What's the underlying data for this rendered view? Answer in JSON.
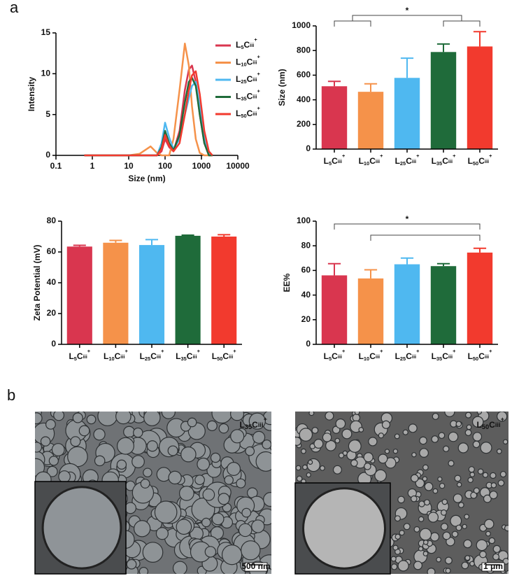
{
  "panels": [
    "a",
    "b"
  ],
  "chart_data": [
    {
      "type": "line",
      "xlabel": "Size (nm)",
      "ylabel": "Intensity",
      "log_x": true,
      "xlim": [
        0.1,
        10000
      ],
      "xticks": [
        0.1,
        1,
        10,
        100,
        1000,
        10000
      ],
      "ylim": [
        0,
        15
      ],
      "yticks": [
        0,
        5,
        10,
        15
      ],
      "legend": "upper right",
      "x": [
        0.6,
        10,
        20,
        40,
        60,
        80,
        100,
        130,
        170,
        250,
        350,
        450,
        550,
        700,
        900,
        1200,
        1600,
        2000
      ],
      "series": [
        {
          "name": [
            "L",
            "5",
            "C",
            "iii",
            "+"
          ],
          "color": "#d9364f",
          "values": [
            0,
            0,
            0,
            0,
            0,
            0.5,
            2.0,
            1.0,
            0.5,
            3,
            8,
            10.5,
            11,
            9,
            5,
            1.5,
            0,
            0
          ]
        },
        {
          "name": [
            "L",
            "10",
            "C",
            "iii",
            "+"
          ],
          "color": "#f5924a",
          "values": [
            0,
            0,
            0.2,
            1.1,
            0.3,
            0,
            0,
            0,
            2,
            8,
            13.7,
            11,
            6,
            2,
            0.3,
            0,
            0,
            0
          ]
        },
        {
          "name": [
            "L",
            "25",
            "C",
            "iii",
            "+"
          ],
          "color": "#4fb8f0",
          "values": [
            0,
            0,
            0,
            0,
            0,
            1.5,
            4,
            2.2,
            0.8,
            2,
            5,
            7,
            8.5,
            9,
            6,
            2,
            0.2,
            0
          ]
        },
        {
          "name": [
            "L",
            "35",
            "C",
            "iii",
            "+"
          ],
          "color": "#1f6b3a",
          "values": [
            0,
            0,
            0,
            0,
            0,
            1,
            3,
            1.5,
            0.6,
            2.5,
            6.5,
            9,
            9.5,
            8.5,
            5,
            1.5,
            0,
            0
          ]
        },
        {
          "name": [
            "L",
            "50",
            "C",
            "iii",
            "+"
          ],
          "color": "#f23a2e",
          "values": [
            0,
            0,
            0,
            0,
            0,
            0.8,
            2.5,
            1.2,
            0.5,
            1.5,
            5,
            8,
            9.8,
            10.3,
            7.5,
            3,
            0.5,
            0
          ]
        }
      ]
    },
    {
      "type": "bar",
      "ylabel": "Size (nm)",
      "categories": [
        [
          "L",
          "5",
          "C",
          "iii",
          "+"
        ],
        [
          "L",
          "10",
          "C",
          "iii",
          "+"
        ],
        [
          "L",
          "25",
          "C",
          "iii",
          "+"
        ],
        [
          "L",
          "35",
          "C",
          "iii",
          "+"
        ],
        [
          "L",
          "50",
          "C",
          "iii",
          "+"
        ]
      ],
      "colors": [
        "#d9364f",
        "#f5924a",
        "#4fb8f0",
        "#1f6b3a",
        "#f23a2e"
      ],
      "values": [
        510,
        465,
        578,
        788,
        833
      ],
      "errors": [
        40,
        65,
        160,
        65,
        120
      ],
      "ylim": [
        0,
        1000
      ],
      "yticks": [
        0,
        200,
        400,
        600,
        800,
        1000
      ],
      "significance": {
        "groups": [
          [
            0,
            1
          ],
          [
            3,
            4
          ]
        ],
        "label": "*"
      }
    },
    {
      "type": "bar",
      "ylabel": "Zeta Potential (mV)",
      "categories": [
        [
          "L",
          "5",
          "C",
          "iii",
          "+"
        ],
        [
          "L",
          "10",
          "C",
          "iii",
          "+"
        ],
        [
          "L",
          "25",
          "C",
          "iii",
          "+"
        ],
        [
          "L",
          "35",
          "C",
          "iii",
          "+"
        ],
        [
          "L",
          "50",
          "C",
          "iii",
          "+"
        ]
      ],
      "colors": [
        "#d9364f",
        "#f5924a",
        "#4fb8f0",
        "#1f6b3a",
        "#f23a2e"
      ],
      "values": [
        63.5,
        66,
        64.5,
        70.5,
        70
      ],
      "errors": [
        0.8,
        1.5,
        3.5,
        0.4,
        1.2
      ],
      "ylim": [
        0,
        80
      ],
      "yticks": [
        0,
        20,
        40,
        60,
        80
      ]
    },
    {
      "type": "bar",
      "ylabel": "EE%",
      "categories": [
        [
          "L",
          "5",
          "C",
          "iii",
          "+"
        ],
        [
          "L",
          "10",
          "C",
          "iii",
          "+"
        ],
        [
          "L",
          "25",
          "C",
          "iii",
          "+"
        ],
        [
          "L",
          "35",
          "C",
          "iii",
          "+"
        ],
        [
          "L",
          "50",
          "C",
          "iii",
          "+"
        ]
      ],
      "colors": [
        "#d9364f",
        "#f5924a",
        "#4fb8f0",
        "#1f6b3a",
        "#f23a2e"
      ],
      "values": [
        56,
        53.5,
        65,
        63.5,
        74.5
      ],
      "errors": [
        9.5,
        7,
        5,
        2,
        3.5
      ],
      "ylim": [
        0,
        100
      ],
      "yticks": [
        0,
        20,
        40,
        60,
        80,
        100
      ],
      "significance": {
        "pairs": [
          [
            0,
            4
          ],
          [
            1,
            4
          ]
        ],
        "label": "*"
      }
    }
  ],
  "images": [
    {
      "label": [
        "L",
        "35",
        "C",
        "iii",
        "+"
      ],
      "scale_bar": "500 nm"
    },
    {
      "label": [
        "L",
        "50",
        "C",
        "iii",
        "+"
      ],
      "scale_bar": "1 μm"
    }
  ]
}
